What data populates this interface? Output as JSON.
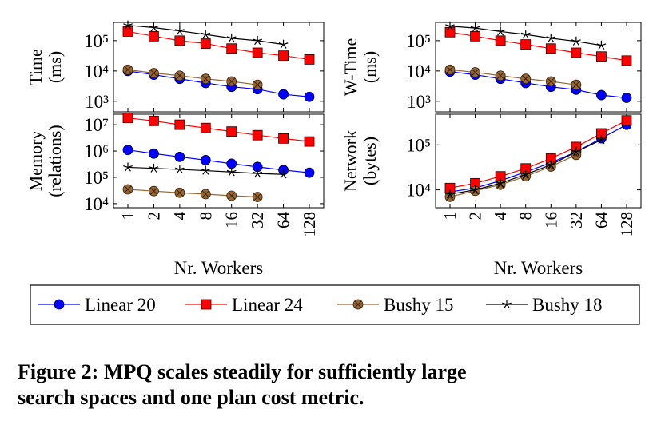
{
  "legend": [
    {
      "name": "Linear 20",
      "color": "#0000ff",
      "marker": "circle"
    },
    {
      "name": "Linear 24",
      "color": "#ff0000",
      "marker": "square"
    },
    {
      "name": "Bushy 15",
      "color": "#996633",
      "marker": "otimes"
    },
    {
      "name": "Bushy 18",
      "color": "#000000",
      "marker": "star"
    }
  ],
  "chart_data": [
    {
      "type": "line",
      "log_y": true,
      "ylabel": [
        "Time",
        "(ms)"
      ],
      "ylim": [
        450,
        400000
      ],
      "yticks": [
        {
          "value": 1000,
          "label": "10³"
        },
        {
          "value": 10000,
          "label": "10⁴"
        },
        {
          "value": 100000,
          "label": "10⁵"
        }
      ],
      "series": [
        {
          "values": [
            10000,
            7500,
            5500,
            4000,
            3000,
            2500,
            1700,
            1400
          ]
        },
        {
          "values": [
            200000,
            140000,
            100000,
            80000,
            55000,
            40000,
            32000,
            24000
          ]
        },
        {
          "values": [
            11000,
            8500,
            7000,
            5500,
            4500,
            3500,
            null,
            null
          ]
        },
        {
          "values": [
            320000,
            270000,
            210000,
            160000,
            120000,
            100000,
            75000,
            null
          ]
        }
      ]
    },
    {
      "type": "line",
      "log_y": true,
      "ylabel": [
        "W-Time",
        "(ms)"
      ],
      "ylim": [
        450,
        400000
      ],
      "yticks": [
        {
          "value": 1000,
          "label": "10³"
        },
        {
          "value": 10000,
          "label": "10⁴"
        },
        {
          "value": 100000,
          "label": "10⁵"
        }
      ],
      "series": [
        {
          "values": [
            9500,
            7500,
            5500,
            4000,
            3000,
            2400,
            1600,
            1300
          ]
        },
        {
          "values": [
            190000,
            140000,
            100000,
            75000,
            55000,
            40000,
            30000,
            22000
          ]
        },
        {
          "values": [
            11000,
            9000,
            7000,
            5500,
            4500,
            3500,
            null,
            null
          ]
        },
        {
          "values": [
            300000,
            260000,
            200000,
            160000,
            120000,
            95000,
            70000,
            null
          ]
        }
      ]
    },
    {
      "type": "line",
      "log_y": true,
      "ylabel": [
        "Memory",
        "(relations)"
      ],
      "xlabel": "Nr. Workers",
      "categories": [
        "1",
        "2",
        "4",
        "8",
        "16",
        "32",
        "64",
        "128"
      ],
      "ylim": [
        7000,
        25000000
      ],
      "yticks": [
        {
          "value": 10000,
          "label": "10⁴"
        },
        {
          "value": 100000,
          "label": "10⁵"
        },
        {
          "value": 1000000,
          "label": "10⁶"
        },
        {
          "value": 10000000,
          "label": "10⁷"
        }
      ],
      "series": [
        {
          "values": [
            1100000,
            800000,
            600000,
            450000,
            330000,
            250000,
            190000,
            150000
          ]
        },
        {
          "values": [
            18000000,
            14000000,
            10000000,
            7500000,
            5500000,
            4000000,
            3000000,
            2300000
          ]
        },
        {
          "values": [
            35000,
            30000,
            26000,
            23000,
            20000,
            18000,
            null,
            null
          ]
        },
        {
          "values": [
            240000,
            220000,
            200000,
            180000,
            160000,
            140000,
            130000,
            null
          ]
        }
      ]
    },
    {
      "type": "line",
      "log_y": true,
      "ylabel": [
        "Network",
        "(bytes)"
      ],
      "xlabel": "Nr. Workers",
      "categories": [
        "1",
        "2",
        "4",
        "8",
        "16",
        "32",
        "64",
        "128"
      ],
      "ylim": [
        4000,
        480000
      ],
      "yticks": [
        {
          "value": 10000,
          "label": "10⁴"
        },
        {
          "value": 100000,
          "label": "10⁵"
        }
      ],
      "series": [
        {
          "values": [
            9000,
            11000,
            16000,
            25000,
            40000,
            70000,
            140000,
            280000
          ]
        },
        {
          "values": [
            11000,
            14000,
            20000,
            30000,
            50000,
            90000,
            180000,
            350000
          ]
        },
        {
          "values": [
            7000,
            9500,
            13000,
            20000,
            33000,
            60000,
            null,
            null
          ]
        },
        {
          "values": [
            8000,
            10000,
            14000,
            22000,
            36000,
            70000,
            130000,
            null
          ]
        }
      ]
    }
  ],
  "caption": [
    "Figure 2: MPQ scales steadily for sufficiently large",
    "search spaces and one plan cost metric."
  ]
}
